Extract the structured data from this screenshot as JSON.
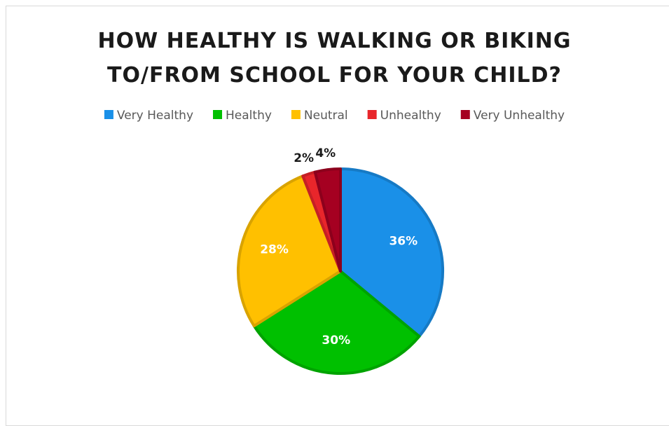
{
  "chart_data": {
    "type": "pie",
    "title": "HOW HEALTHY IS WALKING OR BIKING TO/FROM SCHOOL FOR YOUR CHILD?",
    "categories": [
      "Very Healthy",
      "Healthy",
      "Neutral",
      "Unhealthy",
      "Very Unhealthy"
    ],
    "values": [
      36,
      30,
      28,
      2,
      4
    ],
    "value_labels": [
      "36%",
      "30%",
      "28%",
      "2%",
      "4%"
    ],
    "colors": [
      "#1a90e8",
      "#00c000",
      "#ffc000",
      "#e8262b",
      "#a50021"
    ],
    "legend": "top"
  }
}
